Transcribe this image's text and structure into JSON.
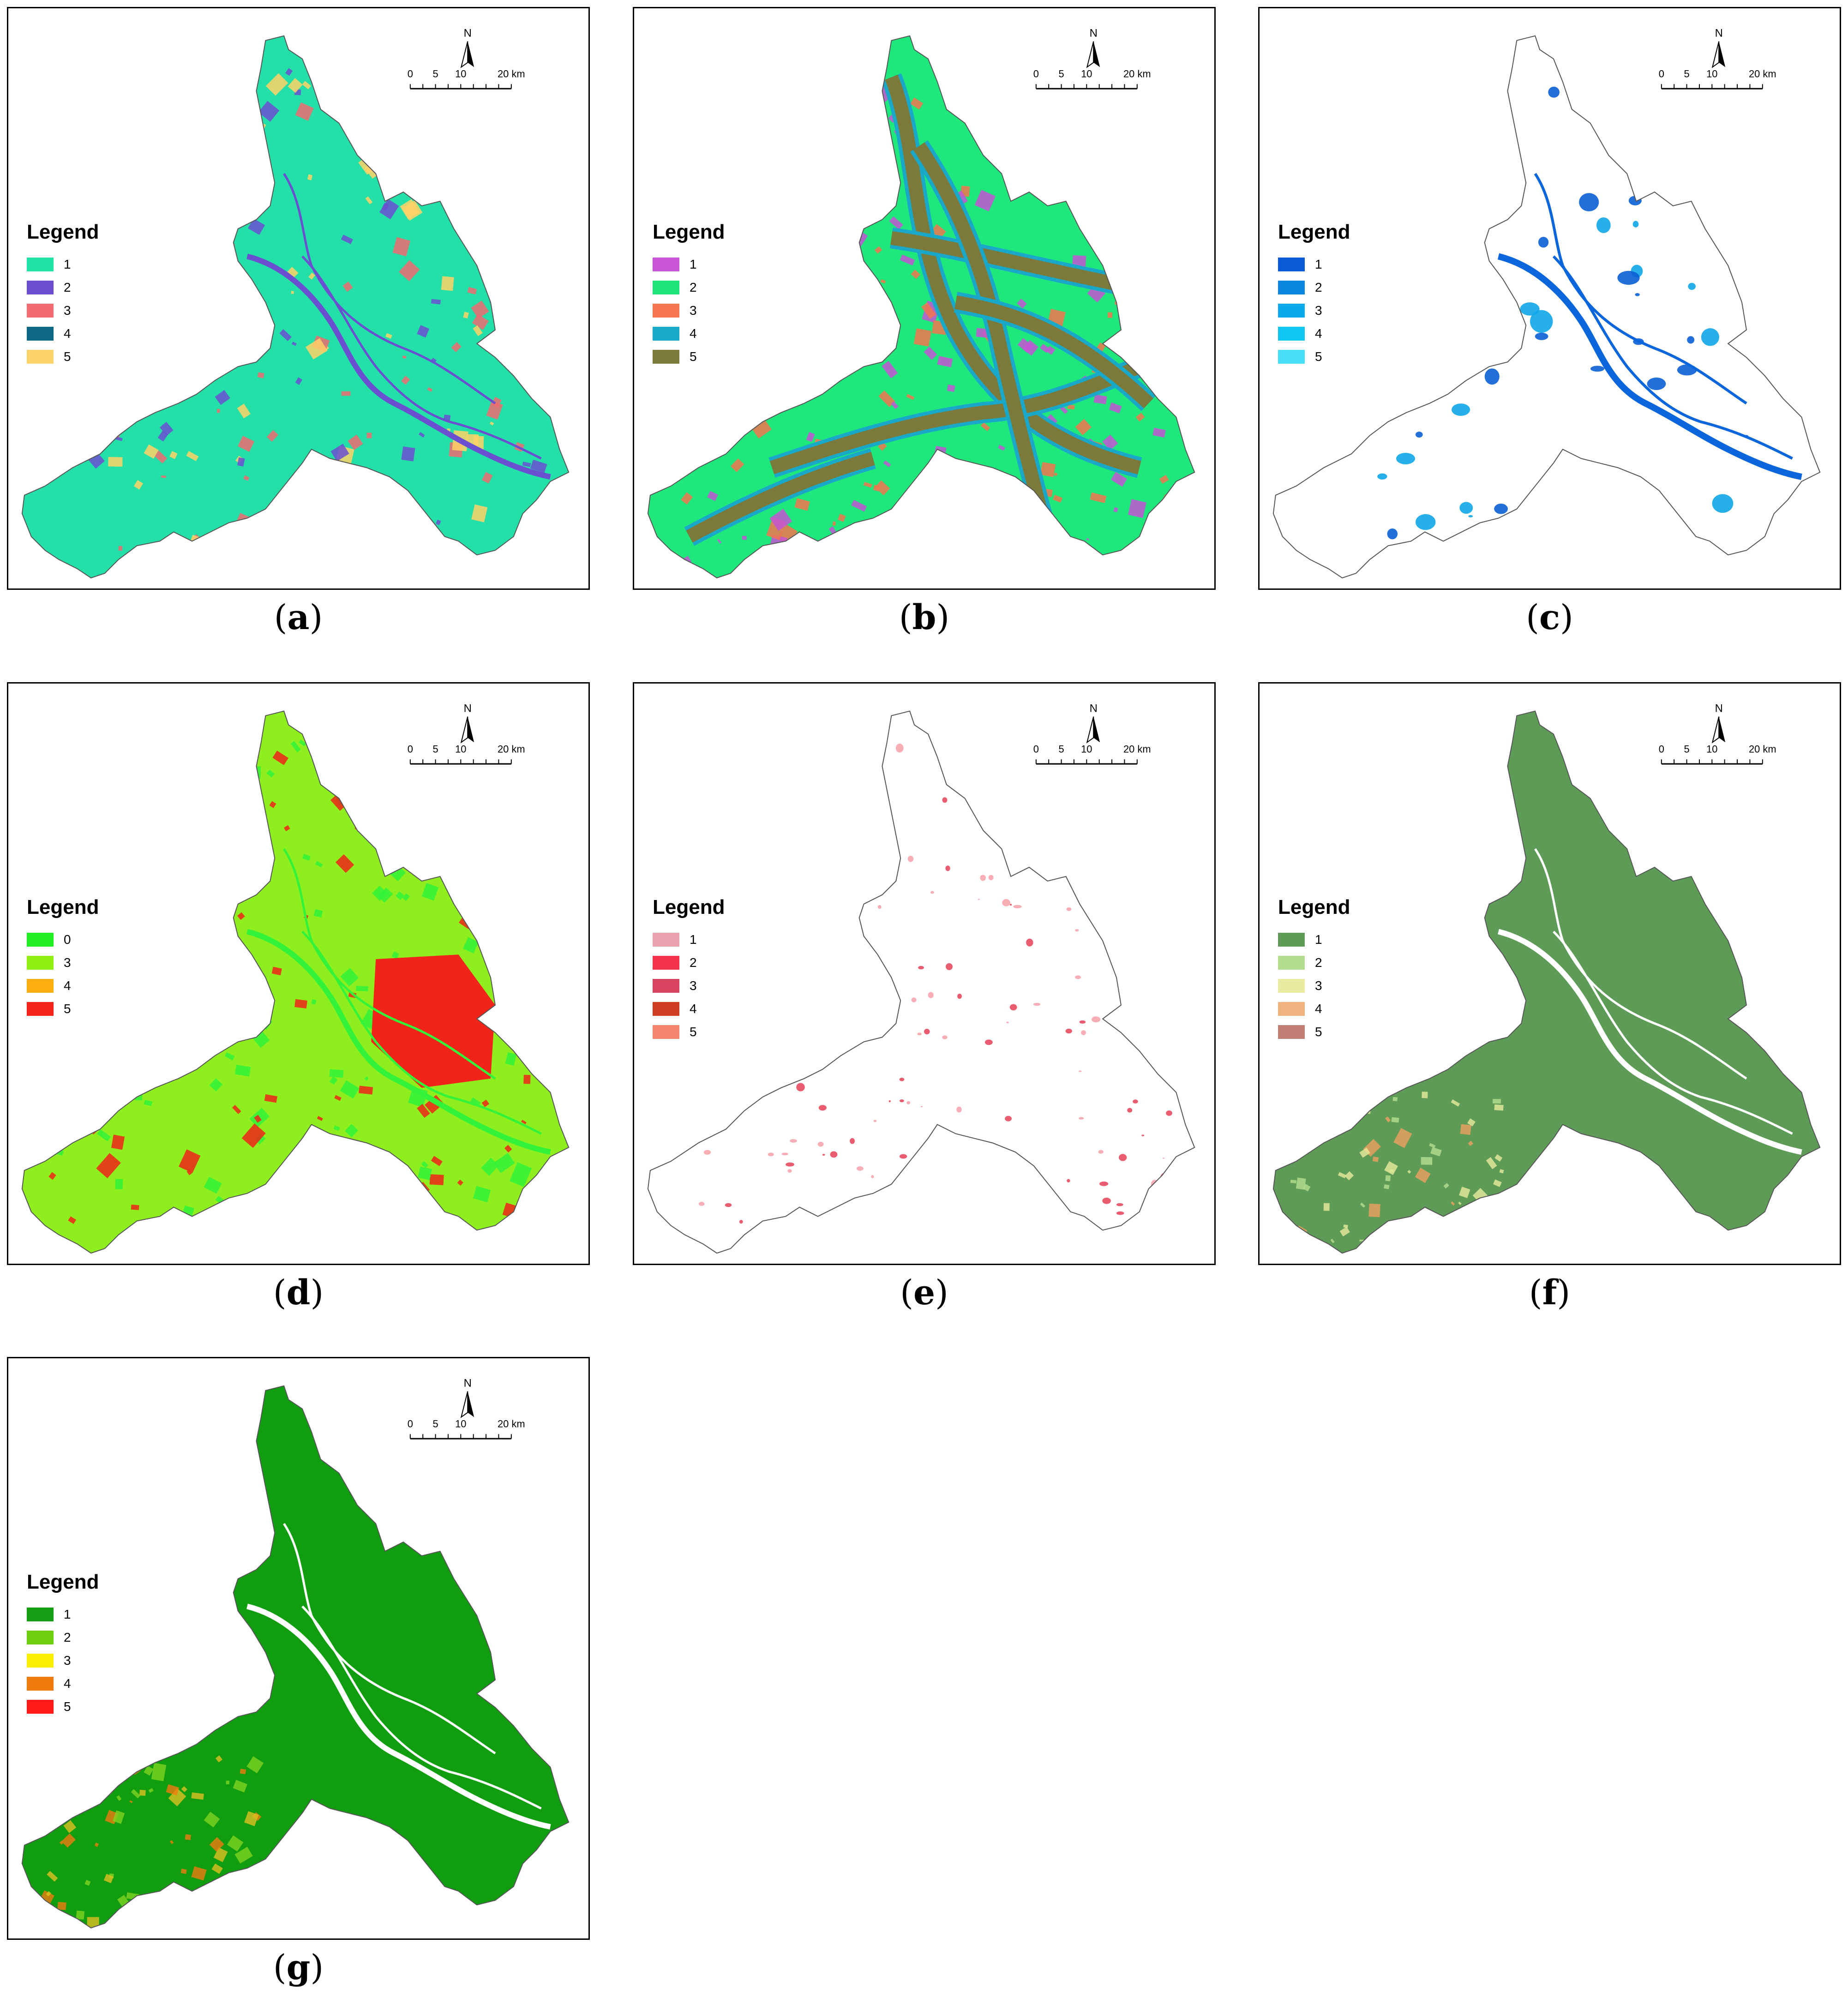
{
  "map_common": {
    "north_label": "N",
    "scale_labels": [
      "0",
      "5",
      "10",
      "20 km"
    ],
    "legend_title": "Legend"
  },
  "panels": [
    {
      "id": "a",
      "caption": "a",
      "style": "mixed",
      "base": "#23e0a8",
      "accent": [
        "#6a4fd1",
        "#f06a70",
        "#ffd166"
      ],
      "river": "#6a4fd1",
      "legend": [
        {
          "label": "1",
          "color": "#21e3a6"
        },
        {
          "label": "2",
          "color": "#6b4fd0"
        },
        {
          "label": "3",
          "color": "#f26b72"
        },
        {
          "label": "4",
          "color": "#0d6884"
        },
        {
          "label": "5",
          "color": "#ffd36b"
        }
      ]
    },
    {
      "id": "b",
      "caption": "b",
      "style": "roads",
      "base": "#1ee87b",
      "accent": [
        "#f2744f",
        "#c653d6"
      ],
      "river": "#1aa8c8",
      "legend": [
        {
          "label": "1",
          "color": "#c854d8"
        },
        {
          "label": "2",
          "color": "#1de57b"
        },
        {
          "label": "3",
          "color": "#f47550"
        },
        {
          "label": "4",
          "color": "#1aabcc"
        },
        {
          "label": "5",
          "color": "#7b7a3a"
        }
      ]
    },
    {
      "id": "c",
      "caption": "c",
      "style": "water",
      "base": "#ffffff",
      "accent": [
        "#0b5fd6",
        "#0fa6e8"
      ],
      "river": "#0b66dc",
      "legend": [
        {
          "label": "1",
          "color": "#0a5ad8"
        },
        {
          "label": "2",
          "color": "#0a86e0"
        },
        {
          "label": "3",
          "color": "#0aa8ec"
        },
        {
          "label": "4",
          "color": "#10c6f2"
        },
        {
          "label": "5",
          "color": "#48e0f8"
        }
      ]
    },
    {
      "id": "d",
      "caption": "d",
      "style": "mixed",
      "base": "#8fee1d",
      "accent": [
        "#f02418",
        "#33f23a"
      ],
      "river": "#33f23a",
      "legend": [
        {
          "label": "0",
          "color": "#22ee22"
        },
        {
          "label": "3",
          "color": "#90f014"
        },
        {
          "label": "4",
          "color": "#ffae10"
        },
        {
          "label": "5",
          "color": "#f42418"
        }
      ]
    },
    {
      "id": "e",
      "caption": "e",
      "style": "sparse",
      "base": "#ffffff",
      "accent": [
        "#e84a5f",
        "#f7a5ad"
      ],
      "river": "#ffffff",
      "legend": [
        {
          "label": "1",
          "color": "#eaa0ad"
        },
        {
          "label": "2",
          "color": "#f2334a"
        },
        {
          "label": "3",
          "color": "#d8435f"
        },
        {
          "label": "4",
          "color": "#cc3d22"
        },
        {
          "label": "5",
          "color": "#f5856f"
        }
      ]
    },
    {
      "id": "f",
      "caption": "f",
      "style": "terrain",
      "base": "#5d9b57",
      "accent": [
        "#b8df90",
        "#f0a060",
        "#e9eb9b"
      ],
      "river": "#ffffff",
      "legend": [
        {
          "label": "1",
          "color": "#5f9a57"
        },
        {
          "label": "2",
          "color": "#b3dd8d"
        },
        {
          "label": "3",
          "color": "#e9eba0"
        },
        {
          "label": "4",
          "color": "#f0b27e"
        },
        {
          "label": "5",
          "color": "#c17e74"
        }
      ]
    },
    {
      "id": "g",
      "caption": "g",
      "style": "terrain",
      "base": "#109d10",
      "accent": [
        "#7ed321",
        "#e0c020",
        "#f07c10"
      ],
      "river": "#ffffff",
      "legend": [
        {
          "label": "1",
          "color": "#139e13"
        },
        {
          "label": "2",
          "color": "#6ecf10"
        },
        {
          "label": "3",
          "color": "#f8f000"
        },
        {
          "label": "4",
          "color": "#f07a0a"
        },
        {
          "label": "5",
          "color": "#ff1a1a"
        }
      ]
    }
  ]
}
